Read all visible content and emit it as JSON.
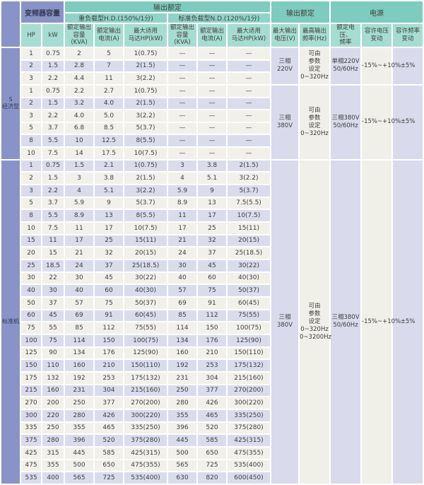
{
  "header": {
    "capacity": "变频器容量",
    "output_rating": "输出额定",
    "hd": "重负载型H.D.(150%/1分)",
    "nd": "标准负载型N.D.(120%/1分)",
    "output_rating_right": "输出额定",
    "power": "电源",
    "hp": "HP",
    "kw": "kW",
    "hd_rated_output_kva": "额定输出\n容量(KVA)",
    "hd_rated_output_a": "额定输出\n电流(A)",
    "hd_max_motor": "最大适用\n马达HP(kW)",
    "nd_rated_output_kva": "额定输出\n容量(KVA)",
    "nd_rated_output_a": "额定输出\n电流(A)",
    "nd_max_motor": "最大适用\n马达HP(kW)",
    "max_output_voltage": "最大输出\n电压(V)",
    "max_output_freq": "最高输出\n频率(Hz)",
    "rated_voltage_freq": "额定电压、\n频率",
    "voltage_tolerance": "容许电压\n变动",
    "freq_tolerance": "容许频率\n变动"
  },
  "colors": {
    "teal_band": "#7ecbc0",
    "teal_sub": "#90d3c9",
    "teal_cols": "#a6ddd3",
    "blue": "#8a93c8",
    "row_cream": "#f2f1e9",
    "row_lavender": "#dadcee"
  },
  "sections": [
    {
      "label": "S\n经济型",
      "shaded_rows": [
        1,
        4,
        7
      ],
      "groups": [
        {
          "voltage": "三相\n220V",
          "freq": "可由\n参数\n设定\n0~320Hz",
          "supply": "单相220V\n50/60Hz",
          "v_tol": "-15%~+10%",
          "f_tol": "±5%",
          "rows": [
            [
              "1",
              "0.75",
              "2",
              "5",
              "1(0.75)",
              "—",
              "—",
              "—"
            ],
            [
              "2",
              "1.5",
              "2.8",
              "7",
              "2(1.5)",
              "—",
              "—",
              "—"
            ],
            [
              "3",
              "2.2",
              "4.4",
              "11",
              "3(2.2)",
              "—",
              "—",
              "—"
            ]
          ]
        },
        {
          "voltage": "三相\n380V",
          "freq": "可由\n参数\n设定\n0~320Hz",
          "supply": "三相380V\n50/60Hz",
          "v_tol": "-15%~+10%",
          "f_tol": "±5%",
          "rows": [
            [
              "1",
              "0.75",
              "2.2",
              "2.7",
              "1(0.75)",
              "—",
              "—",
              "—"
            ],
            [
              "2",
              "1.5",
              "3.2",
              "4.0",
              "2(1.5)",
              "—",
              "—",
              "—"
            ],
            [
              "3",
              "2.2",
              "4.0",
              "5.0",
              "3(2.2)",
              "—",
              "—",
              "—"
            ],
            [
              "5",
              "3.7",
              "6.8",
              "8.5",
              "5(3.7)",
              "—",
              "—",
              "—"
            ],
            [
              "8",
              "5.5",
              "10",
              "12.5",
              "8(5.5)",
              "—",
              "—",
              "—"
            ],
            [
              "10",
              "7.5",
              "14",
              "17.5",
              "10(7.5)",
              "—",
              "—",
              "—"
            ]
          ]
        }
      ]
    },
    {
      "label": "标准机",
      "shaded_rows": [
        0,
        2,
        4,
        6,
        8,
        10,
        12,
        14,
        16,
        18,
        20,
        22,
        25
      ],
      "groups": [
        {
          "voltage": "三相\n380V",
          "freq": "可由\n参数\n设定\n0~320Hz\n0~3200Hz",
          "supply": "三相380V\n50/60Hz",
          "v_tol": "-15%~+10%",
          "f_tol": "±5%",
          "rows": [
            [
              "1",
              "0.75",
              "1.5",
              "2.1",
              "1(0.75)",
              "3",
              "3.8",
              "2(1.5)"
            ],
            [
              "2",
              "1.5",
              "3",
              "3.8",
              "2(1.5)",
              "4",
              "5.1",
              "3(2.2)"
            ],
            [
              "3",
              "2.2",
              "4",
              "5.1",
              "3(2.2)",
              "5.9",
              "9",
              "5(3.7)"
            ],
            [
              "5",
              "3.7",
              "5.9",
              "9",
              "5(3.7)",
              "8.9",
              "13",
              "7.5(5.5)"
            ],
            [
              "8",
              "5.5",
              "8.9",
              "13",
              "8(5.5)",
              "11",
              "17",
              "10(7.5)"
            ],
            [
              "10",
              "7.5",
              "11",
              "17",
              "10(7.5)",
              "17",
              "25",
              "15(11)"
            ],
            [
              "15",
              "11",
              "17",
              "25",
              "15(11)",
              "21",
              "32",
              "20(15)"
            ],
            [
              "20",
              "15",
              "21",
              "32",
              "20(15)",
              "24",
              "37",
              "25(18.5)"
            ],
            [
              "25",
              "18.5",
              "24",
              "37",
              "25(18.5)",
              "30",
              "45",
              "30(22)"
            ],
            [
              "30",
              "22",
              "30",
              "45",
              "30(22)",
              "40",
              "60",
              "40(30)"
            ],
            [
              "40",
              "30",
              "40",
              "60",
              "40(30)",
              "57",
              "75",
              "50(37)"
            ],
            [
              "50",
              "37",
              "57",
              "75",
              "50(37)",
              "69",
              "91",
              "60(45)"
            ],
            [
              "60",
              "45",
              "69",
              "91",
              "60(45)",
              "85",
              "112",
              "75(55)"
            ],
            [
              "75",
              "55",
              "85",
              "112",
              "75(55)",
              "114",
              "150",
              "100(75)"
            ],
            [
              "100",
              "75",
              "114",
              "150",
              "100(75)",
              "134",
              "176",
              "125(90)"
            ],
            [
              "125",
              "90",
              "134",
              "176",
              "125(90)",
              "160",
              "210",
              "150(110)"
            ],
            [
              "150",
              "110",
              "160",
              "210",
              "150(110)",
              "192",
              "253",
              "175(132)"
            ],
            [
              "175",
              "132",
              "192",
              "253",
              "175(132)",
              "231",
              "304",
              "215(160)"
            ],
            [
              "215",
              "160",
              "231",
              "304",
              "215(160)",
              "250",
              "377",
              "270(200)"
            ],
            [
              "270",
              "200",
              "250",
              "377",
              "270(200)",
              "280",
              "426",
              "300(220)"
            ],
            [
              "300",
              "220",
              "280",
              "426",
              "300(220)",
              "355",
              "465",
              "335(250)"
            ],
            [
              "335",
              "250",
              "355",
              "465",
              "335(250)",
              "396",
              "520",
              "375(280)"
            ],
            [
              "375",
              "280",
              "396",
              "520",
              "375(280)",
              "445",
              "585",
              "425(315)"
            ],
            [
              "425",
              "315",
              "445",
              "585",
              "425(315)",
              "500",
              "650",
              "475(355)"
            ],
            [
              "475",
              "355",
              "500",
              "650",
              "475(355)",
              "565",
              "725",
              "535(400)"
            ],
            [
              "535",
              "400",
              "565",
              "725",
              "535(400)",
              "630",
              "820",
              "600(450)"
            ]
          ]
        }
      ]
    }
  ]
}
